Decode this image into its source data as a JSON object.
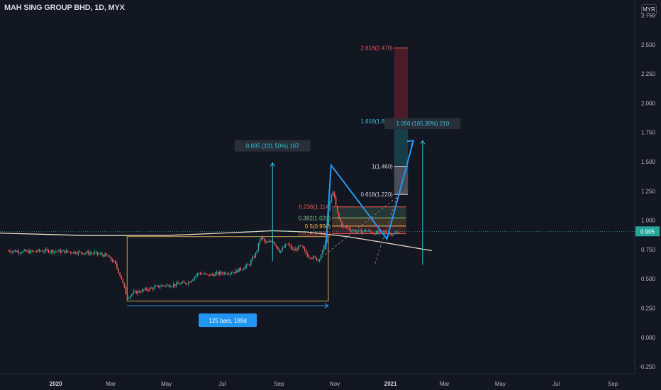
{
  "header": {
    "title": "MAH SING GROUP BHD, 1D, MYX",
    "currency": "MYR"
  },
  "colors": {
    "background": "#131722",
    "up": "#26a69a",
    "down": "#ef5350",
    "ma": "#e6dcc0",
    "drawing": "#2196f3",
    "box": "#c8a24a"
  },
  "chart_data": {
    "type": "candlestick",
    "x_axis_labels": [
      "2020",
      "Mar",
      "May",
      "Jul",
      "Sep",
      "Nov",
      "2021",
      "Mar",
      "May",
      "Jul",
      "Sep"
    ],
    "y_axis_labels": [
      "2.750",
      "2.500",
      "2.250",
      "2.000",
      "1.750",
      "1.500",
      "1.250",
      "1.000",
      "0.750",
      "0.500",
      "0.250",
      "0.000",
      "-0.250"
    ],
    "ylim": [
      -0.31,
      2.88
    ],
    "last_price": "0.905",
    "last_price_value": 0.905,
    "price_path": [
      [
        "2019-11-10",
        0.74
      ],
      [
        "2019-12-01",
        0.73
      ],
      [
        "2019-12-20",
        0.74
      ],
      [
        "2020-01-15",
        0.73
      ],
      [
        "2020-02-10",
        0.72
      ],
      [
        "2020-02-25",
        0.7
      ],
      [
        "2020-03-05",
        0.64
      ],
      [
        "2020-03-12",
        0.52
      ],
      [
        "2020-03-19",
        0.34
      ],
      [
        "2020-03-26",
        0.38
      ],
      [
        "2020-04-10",
        0.41
      ],
      [
        "2020-04-25",
        0.44
      ],
      [
        "2020-05-10",
        0.45
      ],
      [
        "2020-05-25",
        0.47
      ],
      [
        "2020-06-05",
        0.55
      ],
      [
        "2020-06-15",
        0.53
      ],
      [
        "2020-07-01",
        0.55
      ],
      [
        "2020-07-15",
        0.56
      ],
      [
        "2020-07-30",
        0.62
      ],
      [
        "2020-08-07",
        0.72
      ],
      [
        "2020-08-12",
        0.86
      ],
      [
        "2020-08-18",
        0.8
      ],
      [
        "2020-08-25",
        0.83
      ],
      [
        "2020-09-02",
        0.73
      ],
      [
        "2020-09-10",
        0.8
      ],
      [
        "2020-09-17",
        0.74
      ],
      [
        "2020-09-25",
        0.78
      ],
      [
        "2020-10-02",
        0.7
      ],
      [
        "2020-10-09",
        0.68
      ],
      [
        "2020-10-14",
        0.66
      ],
      [
        "2020-10-19",
        0.74
      ],
      [
        "2020-10-22",
        0.83
      ],
      [
        "2020-10-26",
        1.14
      ],
      [
        "2020-10-30",
        1.25
      ],
      [
        "2020-11-04",
        1.05
      ],
      [
        "2020-11-09",
        0.95
      ],
      [
        "2020-11-16",
        0.93
      ],
      [
        "2020-11-25",
        0.9
      ],
      [
        "2020-12-05",
        0.91
      ],
      [
        "2020-12-15",
        0.89
      ],
      [
        "2020-12-25",
        0.9
      ],
      [
        "2021-01-05",
        0.88
      ],
      [
        "2021-01-10",
        0.905
      ]
    ],
    "moving_average": [
      [
        "2019-11-01",
        0.89
      ],
      [
        "2020-02-01",
        0.87
      ],
      [
        "2020-05-01",
        0.87
      ],
      [
        "2020-07-01",
        0.89
      ],
      [
        "2020-08-25",
        0.91
      ],
      [
        "2020-10-01",
        0.9
      ],
      [
        "2020-11-15",
        0.86
      ],
      [
        "2021-01-01",
        0.8
      ],
      [
        "2021-02-15",
        0.74
      ]
    ],
    "fibonacci_levels": [
      {
        "label": "0.618(0.885)",
        "value": 0.885,
        "color": "#ef5350"
      },
      {
        "label": "0.5(0.950)",
        "value": 0.95,
        "color": "#ffb74d"
      },
      {
        "label": "0.382(1.020)",
        "value": 1.02,
        "color": "#81c784"
      },
      {
        "label": "0.236(1.114)",
        "value": 1.114,
        "color": "#ef5350"
      }
    ],
    "fib_extension_levels": [
      {
        "label": "0.618(1.220)",
        "value": 1.22,
        "color": "#d1d4dc"
      },
      {
        "label": "1(1.460)",
        "value": 1.46,
        "color": "#d1d4dc"
      },
      {
        "label": "1.618(1.845)",
        "value": 1.845,
        "color": "#26c6da"
      },
      {
        "label": "2.618(2.470)",
        "value": 2.47,
        "color": "#ef5350"
      }
    ],
    "annotations": [
      {
        "text": "0.835 (131.50%) 167",
        "kind": "measure"
      },
      {
        "text": "1.050 (165.35%) 210",
        "kind": "measure"
      },
      {
        "text": "125 bars, 189d",
        "kind": "range"
      }
    ],
    "range_box": {
      "x_start": "2020-03-19",
      "x_end": "2020-10-25",
      "y_low": 0.31,
      "y_high": 0.86
    },
    "measure_1": {
      "x": "2020-08-25",
      "y_low": 0.65,
      "y_high": 1.49
    },
    "measure_2": {
      "x": "2021-02-05",
      "y_low": 0.62,
      "y_high": 1.68
    },
    "blue_path": [
      [
        "2020-10-22",
        0.75
      ],
      [
        "2020-10-28",
        1.47
      ],
      [
        "2020-12-28",
        0.84
      ],
      [
        "2021-01-26",
        1.68
      ]
    ],
    "dashed_forecast": [
      [
        "2020-10-14",
        0.66
      ],
      [
        "2021-01-18",
        1.26
      ]
    ],
    "dashed_forecast_2": [
      [
        "2020-12-15",
        0.63
      ],
      [
        "2021-01-08",
        1.2
      ]
    ]
  }
}
